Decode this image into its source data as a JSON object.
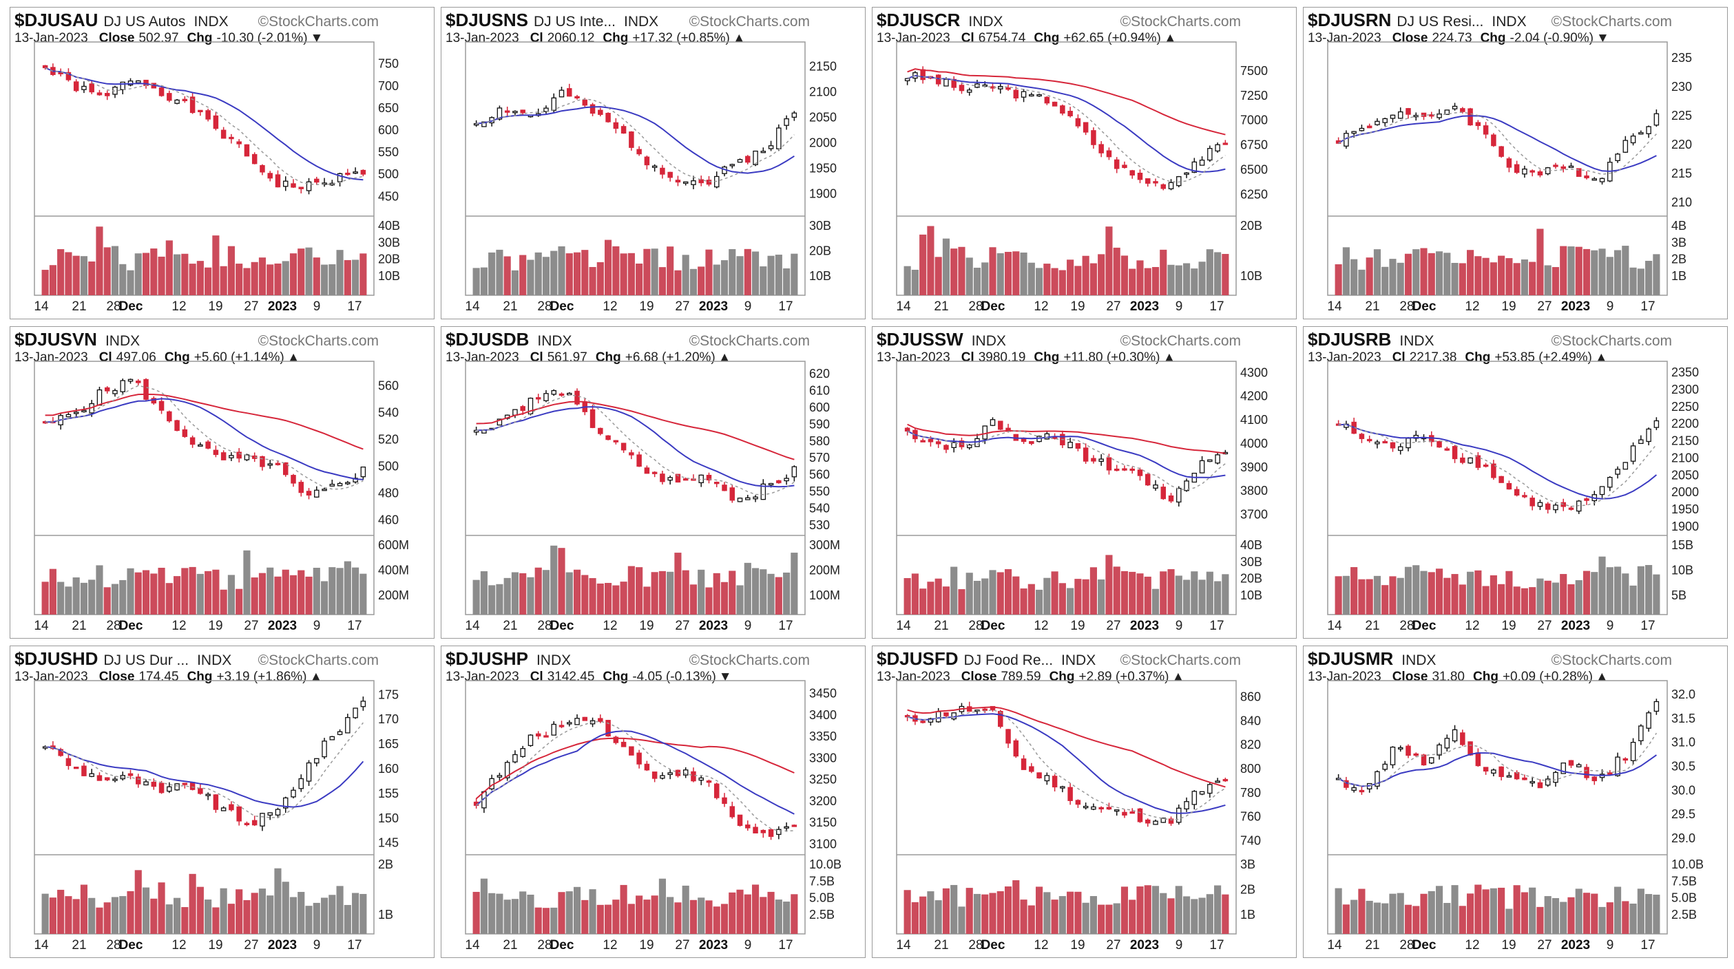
{
  "colors": {
    "up": "#ffffff",
    "down": "#d6263a",
    "wick": "#111111",
    "vol_up": "#8c8c8c",
    "vol_down": "#cc4b5b",
    "ma_fast": "#999999",
    "ma_mid": "#3b3bc2",
    "ma_slow": "#d6263a",
    "frame": "#9a9a9a"
  },
  "chart_data": [
    {
      "type": "candlestick",
      "symbol": "$DJUSAU",
      "name": "DJ US Autos",
      "exchange": "INDX",
      "watermark": "©StockCharts.com",
      "date": "13-Jan-2023",
      "close_label": "Close",
      "close": "502.97",
      "chg_label": "Chg",
      "chg": "-10.30 (-2.01%)",
      "direction": "down",
      "yticks": [
        {
          "v": 750,
          "t": "750"
        },
        {
          "v": 700,
          "t": "700"
        },
        {
          "v": 650,
          "t": "650"
        },
        {
          "v": 600,
          "t": "600"
        },
        {
          "v": 550,
          "t": "550"
        },
        {
          "v": 500,
          "t": "500"
        },
        {
          "v": 450,
          "t": "450"
        }
      ],
      "ylim": [
        410,
        790
      ],
      "vticks": [
        "40B",
        "30B",
        "20B",
        "10B"
      ],
      "vol_max": 45,
      "xticks": [
        "14",
        "21",
        "28",
        "Dec",
        "12",
        "19",
        "27",
        "2023",
        "9",
        "17"
      ],
      "ma_overlays": [
        "mid",
        "fast"
      ],
      "trend": [
        740,
        700,
        670,
        720,
        690,
        650,
        600,
        540,
        480,
        470,
        490,
        505
      ],
      "seed": 1
    },
    {
      "type": "candlestick",
      "symbol": "$DJUSNS",
      "name": "DJ US Inte...",
      "exchange": "INDX",
      "watermark": "©StockCharts.com",
      "date": "13-Jan-2023",
      "close_label": "Cl",
      "close": "2060.12",
      "chg_label": "Chg",
      "chg": "+17.32 (+0.85%)",
      "direction": "up",
      "yticks": [
        {
          "v": 2150,
          "t": "2150"
        },
        {
          "v": 2100,
          "t": "2100"
        },
        {
          "v": 2050,
          "t": "2050"
        },
        {
          "v": 2000,
          "t": "2000"
        },
        {
          "v": 1950,
          "t": "1950"
        },
        {
          "v": 1900,
          "t": "1900"
        }
      ],
      "ylim": [
        1860,
        2190
      ],
      "vticks": [
        "30B",
        "20B",
        "10B"
      ],
      "vol_max": 35,
      "xticks": [
        "14",
        "21",
        "28",
        "Dec",
        "12",
        "19",
        "27",
        "2023",
        "9",
        "17"
      ],
      "ma_overlays": [
        "mid",
        "fast"
      ],
      "trend": [
        2040,
        2070,
        2050,
        2100,
        2060,
        2020,
        1960,
        1930,
        1920,
        1960,
        1990,
        2060
      ],
      "seed": 2
    },
    {
      "type": "candlestick",
      "symbol": "$DJUSCR",
      "name": "",
      "exchange": "INDX",
      "watermark": "©StockCharts.com",
      "date": "13-Jan-2023",
      "close_label": "Cl",
      "close": "6754.74",
      "chg_label": "Chg",
      "chg": "+62.65 (+0.94%)",
      "direction": "up",
      "yticks": [
        {
          "v": 7500,
          "t": "7500"
        },
        {
          "v": 7250,
          "t": "7250"
        },
        {
          "v": 7000,
          "t": "7000"
        },
        {
          "v": 6750,
          "t": "6750"
        },
        {
          "v": 6500,
          "t": "6500"
        },
        {
          "v": 6250,
          "t": "6250"
        }
      ],
      "ylim": [
        6050,
        7750
      ],
      "vticks": [
        "20B",
        "10B"
      ],
      "vol_max": 25,
      "xticks": [
        "14",
        "21",
        "28",
        "Dec",
        "12",
        "19",
        "27",
        "2023",
        "9",
        "17"
      ],
      "ma_overlays": [
        "slow",
        "mid",
        "fast"
      ],
      "trend": [
        7450,
        7400,
        7300,
        7350,
        7250,
        7200,
        6900,
        6600,
        6400,
        6350,
        6600,
        6750
      ],
      "seed": 3
    },
    {
      "type": "candlestick",
      "symbol": "$DJUSRN",
      "name": "DJ US Resi...",
      "exchange": "INDX",
      "watermark": "©StockCharts.com",
      "date": "13-Jan-2023",
      "close_label": "Close",
      "close": "224.73",
      "chg_label": "Chg",
      "chg": "-2.04 (-0.90%)",
      "direction": "down",
      "yticks": [
        {
          "v": 235,
          "t": "235"
        },
        {
          "v": 230,
          "t": "230"
        },
        {
          "v": 225,
          "t": "225"
        },
        {
          "v": 220,
          "t": "220"
        },
        {
          "v": 215,
          "t": "215"
        },
        {
          "v": 210,
          "t": "210"
        }
      ],
      "ylim": [
        208,
        237
      ],
      "vticks": [
        "4B",
        "3B",
        "2B",
        "1B"
      ],
      "vol_max": 4.6,
      "xticks": [
        "14",
        "21",
        "28",
        "Dec",
        "12",
        "19",
        "27",
        "2023",
        "9",
        "17"
      ],
      "ma_overlays": [
        "mid",
        "fast"
      ],
      "trend": [
        221,
        223,
        226,
        224,
        227,
        222,
        216,
        215,
        216,
        214,
        221,
        225
      ],
      "seed": 4
    },
    {
      "type": "candlestick",
      "symbol": "$DJUSVN",
      "name": "",
      "exchange": "INDX",
      "watermark": "©StockCharts.com",
      "date": "13-Jan-2023",
      "close_label": "Cl",
      "close": "497.06",
      "chg_label": "Chg",
      "chg": "+5.60 (+1.14%)",
      "direction": "up",
      "yticks": [
        {
          "v": 560,
          "t": "560"
        },
        {
          "v": 540,
          "t": "540"
        },
        {
          "v": 520,
          "t": "520"
        },
        {
          "v": 500,
          "t": "500"
        },
        {
          "v": 480,
          "t": "480"
        },
        {
          "v": 460,
          "t": "460"
        }
      ],
      "ylim": [
        450,
        575
      ],
      "vticks": [
        "600M",
        "400M",
        "200M"
      ],
      "vol_max": 650,
      "xticks": [
        "14",
        "21",
        "28",
        "Dec",
        "12",
        "19",
        "27",
        "2023",
        "9",
        "17"
      ],
      "ma_overlays": [
        "slow",
        "mid",
        "fast"
      ],
      "trend": [
        530,
        540,
        555,
        565,
        540,
        520,
        505,
        505,
        500,
        475,
        485,
        497
      ],
      "seed": 5
    },
    {
      "type": "candlestick",
      "symbol": "$DJUSDB",
      "name": "",
      "exchange": "INDX",
      "watermark": "©StockCharts.com",
      "date": "13-Jan-2023",
      "close_label": "Cl",
      "close": "561.97",
      "chg_label": "Chg",
      "chg": "+6.68 (+1.20%)",
      "direction": "up",
      "yticks": [
        {
          "v": 620,
          "t": "620"
        },
        {
          "v": 610,
          "t": "610"
        },
        {
          "v": 600,
          "t": "600"
        },
        {
          "v": 590,
          "t": "590"
        },
        {
          "v": 580,
          "t": "580"
        },
        {
          "v": 570,
          "t": "570"
        },
        {
          "v": 560,
          "t": "560"
        },
        {
          "v": 550,
          "t": "550"
        },
        {
          "v": 540,
          "t": "540"
        },
        {
          "v": 530,
          "t": "530"
        }
      ],
      "ylim": [
        525,
        625
      ],
      "vticks": [
        "300M",
        "200M",
        "100M"
      ],
      "vol_max": 330,
      "xticks": [
        "14",
        "21",
        "28",
        "Dec",
        "12",
        "19",
        "27",
        "2023",
        "9",
        "17"
      ],
      "ma_overlays": [
        "slow",
        "mid",
        "fast"
      ],
      "trend": [
        585,
        595,
        605,
        610,
        590,
        575,
        560,
        555,
        560,
        545,
        552,
        562
      ],
      "seed": 6
    },
    {
      "type": "candlestick",
      "symbol": "$DJUSSW",
      "name": "",
      "exchange": "INDX",
      "watermark": "©StockCharts.com",
      "date": "13-Jan-2023",
      "close_label": "Cl",
      "close": "3980.19",
      "chg_label": "Chg",
      "chg": "+11.80 (+0.30%)",
      "direction": "up",
      "yticks": [
        {
          "v": 4300,
          "t": "4300"
        },
        {
          "v": 4200,
          "t": "4200"
        },
        {
          "v": 4100,
          "t": "4100"
        },
        {
          "v": 4000,
          "t": "4000"
        },
        {
          "v": 3900,
          "t": "3900"
        },
        {
          "v": 3800,
          "t": "3800"
        },
        {
          "v": 3700,
          "t": "3700"
        }
      ],
      "ylim": [
        3620,
        4330
      ],
      "vticks": [
        "40B",
        "30B",
        "20B",
        "10B"
      ],
      "vol_max": 45,
      "xticks": [
        "14",
        "21",
        "28",
        "Dec",
        "12",
        "19",
        "27",
        "2023",
        "9",
        "17"
      ],
      "ma_overlays": [
        "slow",
        "mid",
        "fast"
      ],
      "trend": [
        4050,
        4000,
        3980,
        4100,
        4000,
        4050,
        3950,
        3900,
        3880,
        3750,
        3900,
        3980
      ],
      "seed": 7
    },
    {
      "type": "candlestick",
      "symbol": "$DJUSRB",
      "name": "",
      "exchange": "INDX",
      "watermark": "©StockCharts.com",
      "date": "13-Jan-2023",
      "close_label": "Cl",
      "close": "2217.38",
      "chg_label": "Chg",
      "chg": "+53.85 (+2.49%)",
      "direction": "up",
      "yticks": [
        {
          "v": 2350,
          "t": "2350"
        },
        {
          "v": 2300,
          "t": "2300"
        },
        {
          "v": 2250,
          "t": "2250"
        },
        {
          "v": 2200,
          "t": "2200"
        },
        {
          "v": 2150,
          "t": "2150"
        },
        {
          "v": 2100,
          "t": "2100"
        },
        {
          "v": 2050,
          "t": "2050"
        },
        {
          "v": 2000,
          "t": "2000"
        },
        {
          "v": 1950,
          "t": "1950"
        },
        {
          "v": 1900,
          "t": "1900"
        }
      ],
      "ylim": [
        1880,
        2370
      ],
      "vticks": [
        "15B",
        "10B",
        "5B"
      ],
      "vol_max": 17,
      "xticks": [
        "14",
        "21",
        "28",
        "Dec",
        "12",
        "19",
        "27",
        "2023",
        "9",
        "17"
      ],
      "ma_overlays": [
        "mid",
        "fast"
      ],
      "trend": [
        2200,
        2150,
        2130,
        2170,
        2110,
        2080,
        2000,
        1960,
        1950,
        1990,
        2100,
        2217
      ],
      "seed": 8
    },
    {
      "type": "candlestick",
      "symbol": "$DJUSHD",
      "name": "DJ US Dur ...",
      "exchange": "INDX",
      "watermark": "©StockCharts.com",
      "date": "13-Jan-2023",
      "close_label": "Close",
      "close": "174.45",
      "chg_label": "Chg",
      "chg": "+3.19 (+1.86%)",
      "direction": "up",
      "yticks": [
        {
          "v": 175,
          "t": "175"
        },
        {
          "v": 170,
          "t": "170"
        },
        {
          "v": 165,
          "t": "165"
        },
        {
          "v": 160,
          "t": "160"
        },
        {
          "v": 155,
          "t": "155"
        },
        {
          "v": 150,
          "t": "150"
        },
        {
          "v": 145,
          "t": "145"
        }
      ],
      "ylim": [
        143,
        177
      ],
      "vticks": [
        "2B",
        "1B"
      ],
      "vol_max": 2.8,
      "xticks": [
        "14",
        "21",
        "28",
        "Dec",
        "12",
        "19",
        "27",
        "2023",
        "9",
        "17"
      ],
      "ma_overlays": [
        "mid",
        "fast"
      ],
      "trend": [
        165,
        160,
        158,
        158,
        155,
        157,
        152,
        149,
        151,
        160,
        167,
        174
      ],
      "seed": 9
    },
    {
      "type": "candlestick",
      "symbol": "$DJUSHP",
      "name": "",
      "exchange": "INDX",
      "watermark": "©StockCharts.com",
      "date": "13-Jan-2023",
      "close_label": "Cl",
      "close": "3142.45",
      "chg_label": "Chg",
      "chg": "-4.05 (-0.13%)",
      "direction": "down",
      "yticks": [
        {
          "v": 3450,
          "t": "3450"
        },
        {
          "v": 3400,
          "t": "3400"
        },
        {
          "v": 3350,
          "t": "3350"
        },
        {
          "v": 3300,
          "t": "3300"
        },
        {
          "v": 3250,
          "t": "3250"
        },
        {
          "v": 3200,
          "t": "3200"
        },
        {
          "v": 3150,
          "t": "3150"
        },
        {
          "v": 3100,
          "t": "3100"
        }
      ],
      "ylim": [
        3080,
        3470
      ],
      "vticks": [
        "10.0B",
        "7.5B",
        "5.0B",
        "2.5B"
      ],
      "vol_max": 11,
      "xticks": [
        "14",
        "21",
        "28",
        "Dec",
        "12",
        "19",
        "27",
        "2023",
        "9",
        "17"
      ],
      "ma_overlays": [
        "slow",
        "mid",
        "fast"
      ],
      "trend": [
        3200,
        3280,
        3350,
        3380,
        3400,
        3330,
        3260,
        3270,
        3240,
        3150,
        3120,
        3142
      ],
      "seed": 10
    },
    {
      "type": "candlestick",
      "symbol": "$DJUSFD",
      "name": "DJ Food Re...",
      "exchange": "INDX",
      "watermark": "©StockCharts.com",
      "date": "13-Jan-2023",
      "close_label": "Close",
      "close": "789.59",
      "chg_label": "Chg",
      "chg": "+2.89 (+0.37%)",
      "direction": "up",
      "yticks": [
        {
          "v": 860,
          "t": "860"
        },
        {
          "v": 840,
          "t": "840"
        },
        {
          "v": 820,
          "t": "820"
        },
        {
          "v": 800,
          "t": "800"
        },
        {
          "v": 780,
          "t": "780"
        },
        {
          "v": 760,
          "t": "760"
        },
        {
          "v": 740,
          "t": "740"
        }
      ],
      "ylim": [
        730,
        870
      ],
      "vticks": [
        "3B",
        "2B",
        "1B"
      ],
      "vol_max": 3.4,
      "xticks": [
        "14",
        "21",
        "28",
        "Dec",
        "12",
        "19",
        "27",
        "2023",
        "9",
        "17"
      ],
      "ma_overlays": [
        "slow",
        "mid",
        "fast"
      ],
      "trend": [
        840,
        845,
        850,
        845,
        800,
        790,
        770,
        765,
        760,
        755,
        780,
        790
      ],
      "seed": 11
    },
    {
      "type": "candlestick",
      "symbol": "$DJUSMR",
      "name": "",
      "exchange": "INDX",
      "watermark": "©StockCharts.com",
      "date": "13-Jan-2023",
      "close_label": "Close",
      "close": "31.80",
      "chg_label": "Chg",
      "chg": "+0.09 (+0.28%)",
      "direction": "up",
      "yticks": [
        {
          "v": 32.0,
          "t": "32.0"
        },
        {
          "v": 31.5,
          "t": "31.5"
        },
        {
          "v": 31.0,
          "t": "31.0"
        },
        {
          "v": 30.5,
          "t": "30.5"
        },
        {
          "v": 30.0,
          "t": "30.0"
        },
        {
          "v": 29.5,
          "t": "29.5"
        },
        {
          "v": 29.0,
          "t": "29.0"
        }
      ],
      "ylim": [
        28.7,
        32.2
      ],
      "vticks": [
        "10.0B",
        "7.5B",
        "5.0B",
        "2.5B"
      ],
      "vol_max": 11,
      "xticks": [
        "14",
        "21",
        "28",
        "Dec",
        "12",
        "19",
        "27",
        "2023",
        "9",
        "17"
      ],
      "ma_overlays": [
        "mid",
        "fast"
      ],
      "trend": [
        30.2,
        30.0,
        31.0,
        30.5,
        31.2,
        30.4,
        30.2,
        30.1,
        30.6,
        30.2,
        30.8,
        31.8
      ],
      "seed": 12
    }
  ]
}
